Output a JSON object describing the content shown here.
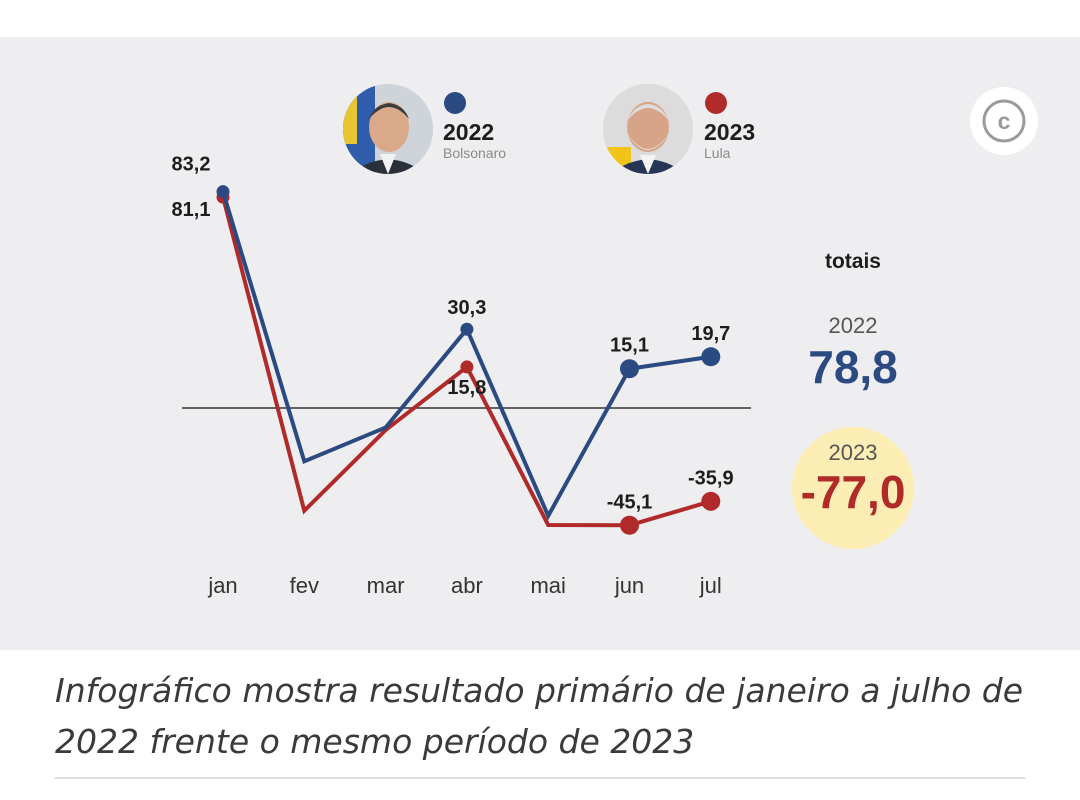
{
  "colors": {
    "y2022": "#2b4a82",
    "y2023": "#b02a2a",
    "zero_line": "#333333",
    "highlight": "#fbedb3",
    "text": "#1d1d1d",
    "muted": "#8a8a8a"
  },
  "legend": [
    {
      "year": "2022",
      "name": "Bolsonaro",
      "photo": "portrait-bolsonaro"
    },
    {
      "year": "2023",
      "name": "Lula",
      "photo": "portrait-lula"
    }
  ],
  "copyright_symbol": "c",
  "totals": {
    "label": "totais",
    "y2022": {
      "year": "2022",
      "value": "78,8"
    },
    "y2023": {
      "year": "2023",
      "value": "-77,0"
    }
  },
  "caption": "Infográfico mostra resultado primário de janeiro a julho de 2022 frente o mesmo período de 2023",
  "chart_data": {
    "type": "line",
    "categories": [
      "jan",
      "fev",
      "mar",
      "abr",
      "mai",
      "jun",
      "jul"
    ],
    "series": [
      {
        "name": "2022",
        "values": [
          83.2,
          -20.5,
          -7.5,
          30.3,
          -41.5,
          15.1,
          19.7
        ],
        "labels": [
          "83,2",
          "",
          "",
          "30,3",
          "",
          "15,1",
          "19,7"
        ]
      },
      {
        "name": "2023",
        "values": [
          81.1,
          -39.5,
          -8.5,
          15.8,
          -45.0,
          -45.1,
          -35.9
        ],
        "labels": [
          "81,1",
          "",
          "",
          "15,8",
          "",
          "-45,1",
          "-35,9"
        ]
      }
    ],
    "ylim": [
      -60,
      90
    ]
  }
}
